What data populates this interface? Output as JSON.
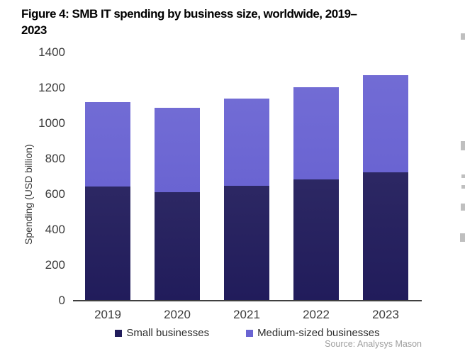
{
  "figure": {
    "title_full": "Figure 4: SMB IT spending by business size, worldwide, 2019–2023",
    "title_line1": "Figure 4: SMB IT spending by business size, worldwide, 2019–",
    "title_line2": "2023"
  },
  "chart_data": {
    "type": "bar",
    "stacked": true,
    "title": "Figure 4: SMB IT spending by business size, worldwide, 2019–2023",
    "categories": [
      "2019",
      "2020",
      "2021",
      "2022",
      "2023"
    ],
    "series": [
      {
        "name": "Small businesses",
        "color": "#211C5B",
        "values": [
          640,
          610,
          645,
          680,
          720
        ]
      },
      {
        "name": "Medium-sized businesses",
        "color": "#6A64D2",
        "values": [
          475,
          475,
          490,
          520,
          550
        ]
      }
    ],
    "totals": [
      1115,
      1085,
      1135,
      1200,
      1270
    ],
    "xlabel": "",
    "ylabel": "Spending (USD billion)",
    "ylim": [
      0,
      1400
    ],
    "yticks": [
      0,
      200,
      400,
      600,
      800,
      1000,
      1200,
      1400
    ],
    "grid": false,
    "legend_position": "bottom",
    "source": "Source: Analysys Mason"
  },
  "colors": {
    "small_businesses": "#211C5B",
    "medium_businesses": "#6A64D2",
    "axis_line": "#3f3f3f",
    "tick_text": "#3c3c3c",
    "source_text": "#9e9e9e"
  }
}
